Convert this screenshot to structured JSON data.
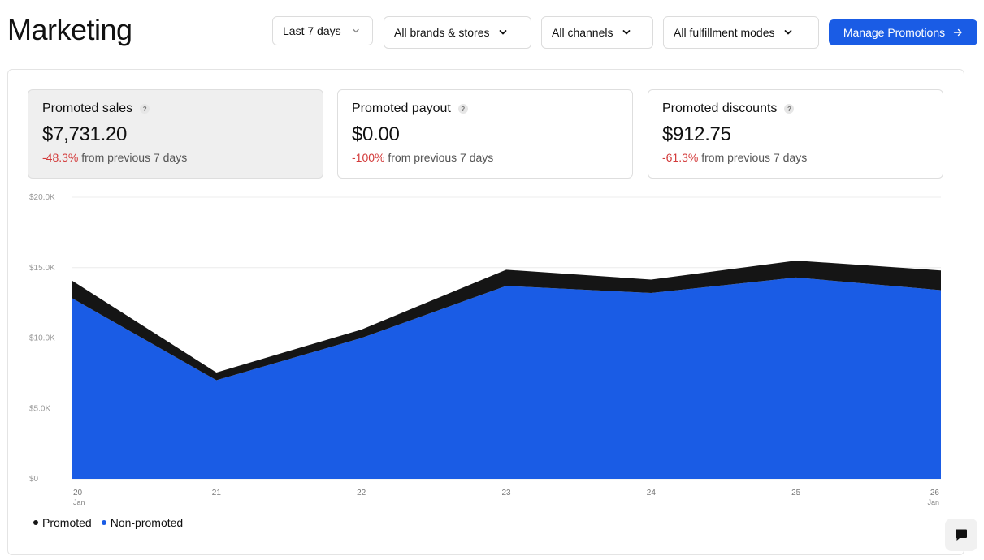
{
  "header": {
    "title": "Marketing",
    "filters": {
      "date": "Last 7 days",
      "brands": "All brands & stores",
      "channels": "All channels",
      "fulfillment": "All fulfillment modes"
    },
    "manage_button": "Manage Promotions"
  },
  "kpis": [
    {
      "label": "Promoted sales",
      "value": "$7,731.20",
      "change": "-48.3%",
      "change_suffix": "from previous 7 days",
      "help": "?"
    },
    {
      "label": "Promoted payout",
      "value": "$0.00",
      "change": "-100%",
      "change_suffix": "from previous 7 days",
      "help": "?"
    },
    {
      "label": "Promoted discounts",
      "value": "$912.75",
      "change": "-61.3%",
      "change_suffix": "from previous 7 days",
      "help": "?"
    }
  ],
  "colors": {
    "accent": "#1a5ce5",
    "promoted": "#151515",
    "non_promoted": "#1a5ce5",
    "negative": "#d33b3b"
  },
  "legend": {
    "promoted": "Promoted",
    "non_promoted": "Non-promoted"
  },
  "icons": {
    "chevron": "chevron-down-icon",
    "arrow": "arrow-right-icon",
    "chat": "chat-icon",
    "help": "help-icon"
  },
  "chart_data": {
    "type": "area",
    "stacked": true,
    "categories": [
      "20",
      "21",
      "22",
      "23",
      "24",
      "25",
      "26"
    ],
    "category_month": {
      "20": "Jan",
      "26": "Jan"
    },
    "y_ticks": [
      "$0",
      "$5.0K",
      "$10.0K",
      "$15.0K",
      "$20.0K"
    ],
    "ylim": [
      0,
      20000
    ],
    "grid": true,
    "legend_position": "bottom-left",
    "series": [
      {
        "name": "Non-promoted",
        "values": [
          12850,
          7000,
          10000,
          13700,
          13200,
          14300,
          13400
        ]
      },
      {
        "name": "Promoted",
        "values": [
          1250,
          550,
          600,
          1150,
          950,
          1200,
          1400
        ]
      }
    ]
  }
}
